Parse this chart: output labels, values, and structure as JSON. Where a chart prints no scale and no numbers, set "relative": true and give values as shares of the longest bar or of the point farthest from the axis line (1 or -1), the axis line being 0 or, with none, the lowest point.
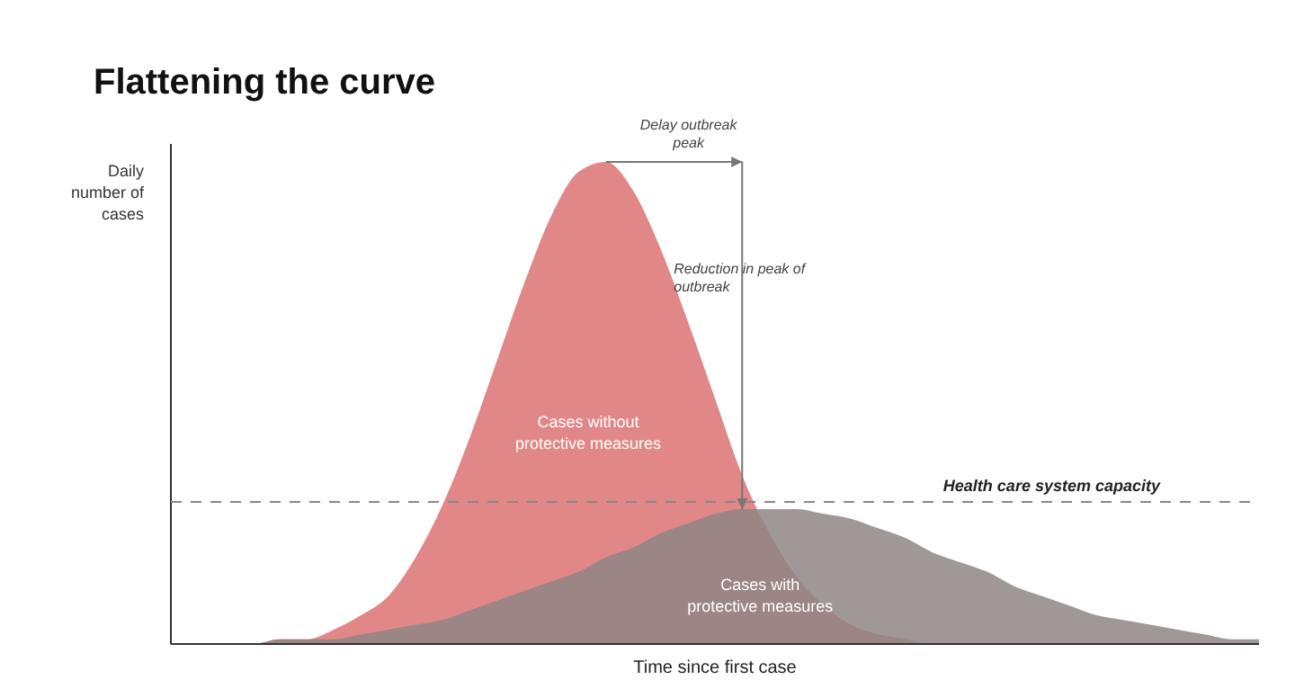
{
  "chart_data": {
    "type": "area",
    "title": "Flattening the curve",
    "xlabel": "Time since first case",
    "ylabel": "Daily number of cases",
    "relative": true,
    "categories": [
      null,
      null,
      null,
      null,
      null,
      null,
      null,
      null,
      null,
      null,
      null,
      null,
      null,
      null,
      null,
      null,
      null,
      null,
      null,
      null,
      null,
      null,
      null,
      null,
      null,
      null,
      null,
      null,
      null,
      null,
      null,
      null,
      null,
      null,
      null,
      null,
      null,
      null,
      null,
      null,
      null
    ],
    "series": [
      {
        "name": "Cases without protective measures",
        "color": "#e28787",
        "values": [
          0,
          0,
          0,
          0,
          0.01,
          0.01,
          0.03,
          0.06,
          0.1,
          0.18,
          0.29,
          0.43,
          0.59,
          0.75,
          0.89,
          0.98,
          1,
          0.94,
          0.82,
          0.67,
          0.51,
          0.35,
          0.23,
          0.14,
          0.08,
          0.04,
          0.02,
          0.01,
          0,
          0,
          0,
          0,
          0,
          0,
          0,
          0,
          0,
          0,
          0,
          0,
          0
        ]
      },
      {
        "name": "Cases with protective measures",
        "color": "#8f8585",
        "values": [
          0,
          0,
          0,
          0,
          0.01,
          0.01,
          0.01,
          0.02,
          0.03,
          0.04,
          0.05,
          0.07,
          0.09,
          0.11,
          0.13,
          0.15,
          0.18,
          0.2,
          0.23,
          0.25,
          0.27,
          0.28,
          0.28,
          0.28,
          0.27,
          0.26,
          0.24,
          0.22,
          0.19,
          0.17,
          0.15,
          0.12,
          0.1,
          0.08,
          0.06,
          0.05,
          0.04,
          0.03,
          0.02,
          0.01,
          0.01
        ]
      }
    ],
    "ref_lines": [
      {
        "axis": "y",
        "value": 0.295,
        "label": "Health care system capacity",
        "color": "#888888",
        "line_style": "dashed"
      }
    ],
    "annotations": [
      "Delay outbreak peak",
      "Reduction in peak of outbreak"
    ]
  }
}
